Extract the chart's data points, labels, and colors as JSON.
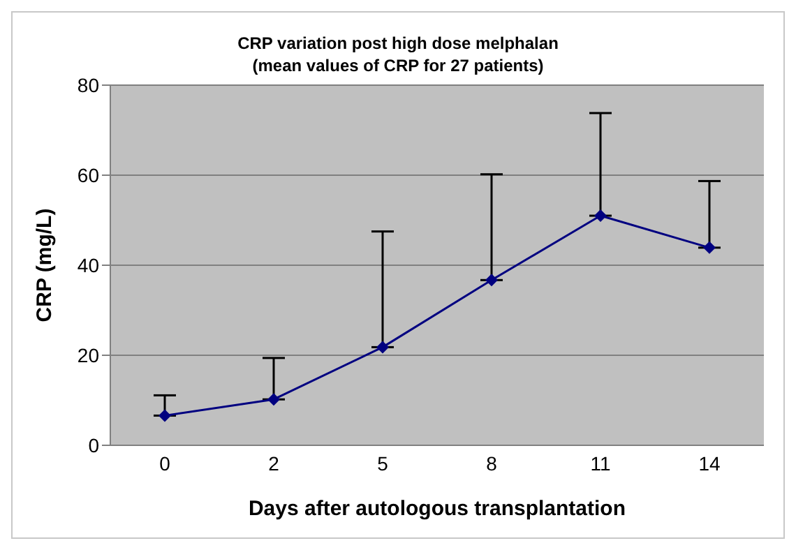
{
  "chart_data": {
    "type": "line",
    "title": "CRP variation post high dose melphalan\n(mean values of CRP for 27 patients)",
    "xlabel": "Days after autologous transplantation",
    "ylabel": "CRP (mg/L)",
    "categories": [
      "0",
      "2",
      "5",
      "8",
      "11",
      "14"
    ],
    "series": [
      {
        "color": "#000080",
        "values": [
          6.6,
          10.2,
          21.8,
          36.7,
          51.0,
          43.9
        ],
        "errors": [
          [
            6.6,
            11.1
          ],
          [
            10.2,
            19.4
          ],
          [
            21.8,
            47.5
          ],
          [
            36.7,
            60.2
          ],
          [
            51.0,
            73.8
          ],
          [
            43.9,
            58.7
          ]
        ]
      }
    ],
    "ylim": [
      0,
      80
    ],
    "yticks": [
      0,
      20,
      40,
      60,
      80
    ],
    "grid": "y",
    "legend": false,
    "marker": "diamond",
    "line_style": "solid"
  }
}
